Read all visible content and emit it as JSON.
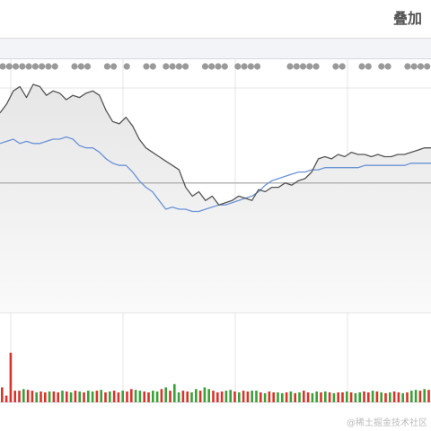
{
  "header": {
    "overlay_label": "叠加"
  },
  "watermark": "@稀土掘金技术社区",
  "colors": {
    "price_line": "#555555",
    "avg_line": "#6b93d6",
    "area_fill": "#ececec",
    "up_volume": "#d9342b",
    "down_volume": "#3aa139",
    "marker_dot": "#9a9a9a",
    "grid": "#e4e4e4"
  },
  "chart_data": {
    "type": "line",
    "title": "",
    "xlabel": "",
    "ylabel": "",
    "ylim": [
      0,
      100
    ],
    "reference_level": 46,
    "grid": true,
    "legend": "none",
    "event_markers": [
      0,
      1,
      2,
      3,
      4,
      5,
      6,
      7,
      8,
      11,
      12,
      13,
      16,
      17,
      19,
      22,
      23,
      25,
      26,
      27,
      28,
      31,
      32,
      33,
      34,
      36,
      37,
      38,
      39,
      44,
      45,
      46,
      47,
      48,
      51,
      52,
      55,
      56,
      58,
      59,
      62,
      63,
      64,
      65
    ],
    "series": [
      {
        "name": "",
        "role": "price",
        "values": [
          78,
          82,
          88,
          90,
          85,
          91,
          90,
          86,
          88,
          87,
          84,
          86,
          85,
          87,
          88,
          86,
          79,
          74,
          73,
          76,
          72,
          66,
          62,
          60,
          58,
          56,
          54,
          52,
          44,
          40,
          42,
          38,
          40,
          36,
          37,
          38,
          40,
          39,
          38,
          43,
          42,
          44,
          44,
          46,
          45,
          47,
          48,
          51,
          57,
          58,
          57,
          59,
          58,
          60,
          59,
          59,
          58,
          59,
          58,
          58,
          59,
          59,
          60,
          61,
          62,
          62
        ]
      },
      {
        "name": "",
        "role": "average",
        "values": [
          64,
          65,
          66,
          64,
          65,
          64,
          64,
          65,
          66,
          66,
          67,
          66,
          63,
          62,
          62,
          60,
          57,
          55,
          54,
          54,
          51,
          47,
          44,
          42,
          38,
          34,
          35,
          34,
          34,
          33,
          33,
          34,
          35,
          36,
          36,
          37,
          38,
          39,
          40,
          42,
          45,
          47,
          48,
          49,
          50,
          51,
          51,
          52,
          52,
          53,
          53,
          53,
          53,
          53,
          53,
          54,
          54,
          54,
          54,
          54,
          54,
          54,
          55,
          55,
          55,
          55
        ]
      }
    ],
    "volume": {
      "values": [
        18,
        8,
        60,
        14,
        14,
        16,
        15,
        14,
        12,
        13,
        12,
        13,
        13,
        12,
        14,
        13,
        12,
        14,
        13,
        12,
        14,
        13,
        14,
        15,
        12,
        13,
        14,
        12,
        14,
        13,
        16,
        15,
        14,
        13,
        12,
        14,
        13,
        16,
        18,
        14,
        22,
        12,
        14,
        13,
        12,
        16,
        14,
        18,
        16,
        14,
        12,
        13,
        14,
        15,
        13,
        12,
        14,
        13,
        14,
        14,
        12,
        11,
        13,
        12,
        12,
        11,
        12,
        13,
        11,
        12,
        14,
        12,
        11,
        13,
        12,
        13,
        12,
        11,
        12,
        12,
        13,
        12,
        11,
        12,
        13,
        12,
        14,
        13,
        12,
        11,
        12,
        13,
        12,
        11,
        12,
        14,
        15,
        14,
        16,
        15
      ],
      "direction": [
        "up",
        "up",
        "up",
        "up",
        "up",
        "down",
        "up",
        "up",
        "down",
        "up",
        "up",
        "down",
        "up",
        "up",
        "down",
        "up",
        "down",
        "up",
        "down",
        "up",
        "down",
        "down",
        "up",
        "down",
        "up",
        "down",
        "up",
        "up",
        "down",
        "up",
        "up",
        "down",
        "down",
        "up",
        "up",
        "down",
        "down",
        "up",
        "down",
        "up",
        "down",
        "down",
        "up",
        "up",
        "down",
        "down",
        "up",
        "down",
        "down",
        "up",
        "up",
        "up",
        "down",
        "down",
        "up",
        "down",
        "up",
        "up",
        "down",
        "down",
        "up",
        "down",
        "up",
        "up",
        "down",
        "down",
        "up",
        "down",
        "up",
        "down",
        "up",
        "up",
        "down",
        "down",
        "up",
        "down",
        "up",
        "down",
        "up",
        "up",
        "down",
        "up",
        "down",
        "down",
        "up",
        "up",
        "down",
        "up",
        "down",
        "up",
        "down",
        "up",
        "up",
        "down",
        "up",
        "down",
        "down",
        "up",
        "down",
        "up"
      ],
      "ylim": [
        0,
        100
      ]
    }
  }
}
